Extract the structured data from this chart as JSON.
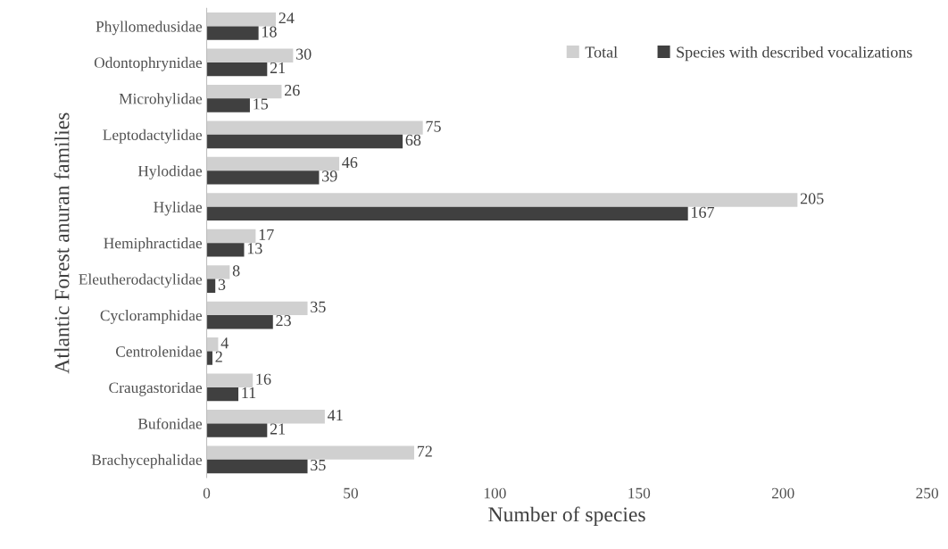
{
  "chart_data": {
    "type": "bar",
    "orientation": "horizontal",
    "xlabel": "Number of species",
    "ylabel": "Atlantic Forest anuran families",
    "categories": [
      "Phyllomedusidae",
      "Odontophrynidae",
      "Microhylidae",
      "Leptodactylidae",
      "Hylodidae",
      "Hylidae",
      "Hemiphractidae",
      "Eleutherodactylidae",
      "Cycloramphidae",
      "Centrolenidae",
      "Craugastoridae",
      "Bufonidae",
      "Brachycephalidae"
    ],
    "series": [
      {
        "name": "Total",
        "color": "#d0d0d0",
        "values": [
          24,
          30,
          26,
          75,
          46,
          205,
          17,
          8,
          35,
          4,
          16,
          41,
          72
        ]
      },
      {
        "name": "Species with described vocalizations",
        "color": "#404040",
        "values": [
          18,
          21,
          15,
          68,
          39,
          167,
          13,
          3,
          23,
          2,
          11,
          21,
          35
        ]
      }
    ],
    "xlim": [
      0,
      250
    ],
    "xticks": [
      0,
      50,
      100,
      150,
      200,
      250
    ],
    "grid": false,
    "legend": "top right",
    "data_labels": true
  }
}
